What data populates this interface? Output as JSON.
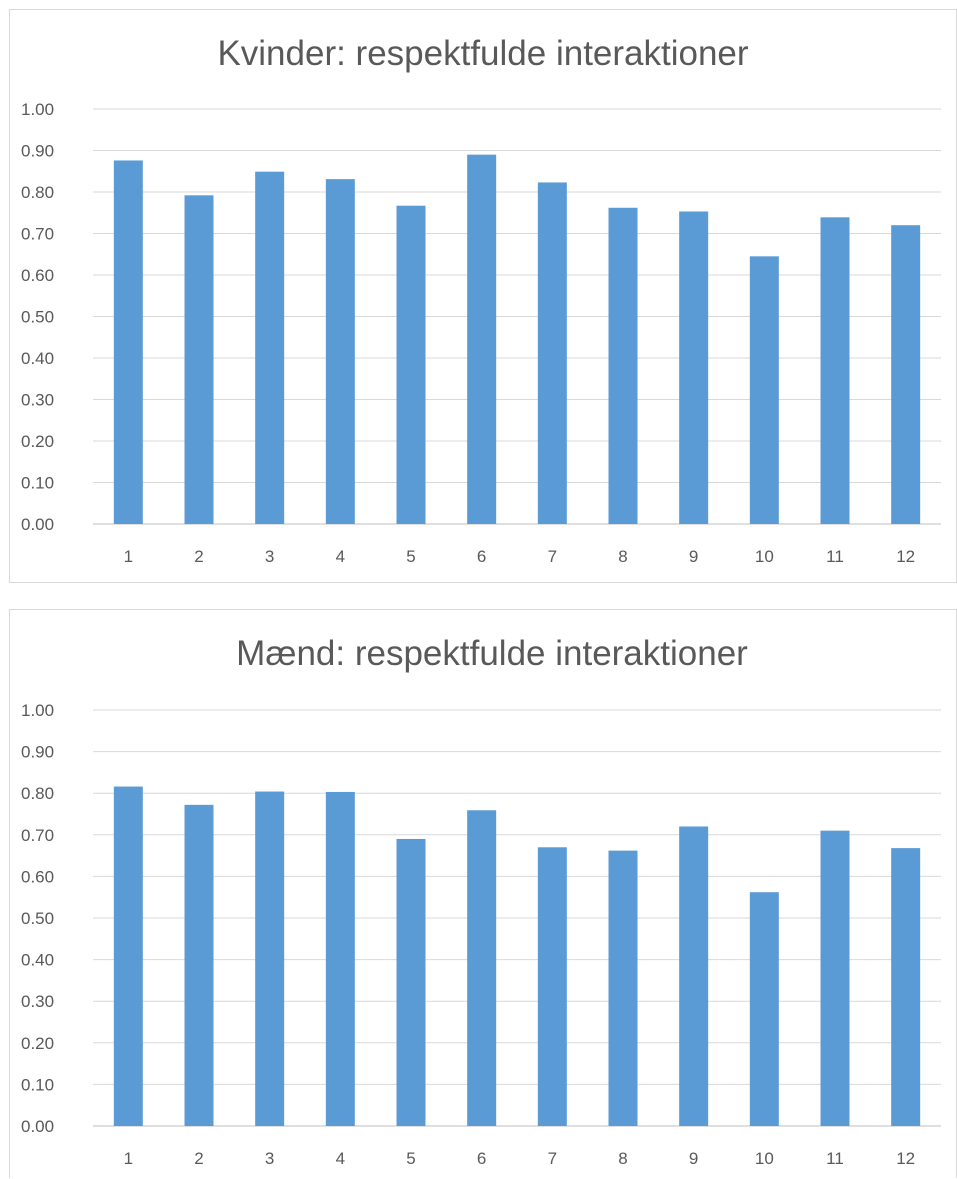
{
  "chart_data": [
    {
      "type": "bar",
      "title": "Kvinder: respektfulde interaktioner",
      "categories": [
        "1",
        "2",
        "3",
        "4",
        "5",
        "6",
        "7",
        "8",
        "9",
        "10",
        "11",
        "12"
      ],
      "values": [
        0.876,
        0.792,
        0.849,
        0.831,
        0.767,
        0.89,
        0.823,
        0.762,
        0.753,
        0.645,
        0.739,
        0.72
      ],
      "xlabel": "",
      "ylabel": "",
      "ylim": [
        0,
        1
      ],
      "yticks": [
        "0.00",
        "0.10",
        "0.20",
        "0.30",
        "0.40",
        "0.50",
        "0.60",
        "0.70",
        "0.80",
        "0.90",
        "1.00"
      ],
      "grid": true,
      "legend": "none",
      "bar_color": "#5b9bd5"
    },
    {
      "type": "bar",
      "title": "Mænd: respektfulde interaktioner",
      "categories": [
        "1",
        "2",
        "3",
        "4",
        "5",
        "6",
        "7",
        "8",
        "9",
        "10",
        "11",
        "12"
      ],
      "values": [
        0.816,
        0.772,
        0.804,
        0.803,
        0.69,
        0.759,
        0.67,
        0.662,
        0.72,
        0.562,
        0.71,
        0.668
      ],
      "xlabel": "",
      "ylabel": "",
      "ylim": [
        0,
        1
      ],
      "yticks": [
        "0.00",
        "0.10",
        "0.20",
        "0.30",
        "0.40",
        "0.50",
        "0.60",
        "0.70",
        "0.80",
        "0.90",
        "1.00"
      ],
      "grid": true,
      "legend": "none",
      "bar_color": "#5b9bd5"
    }
  ]
}
